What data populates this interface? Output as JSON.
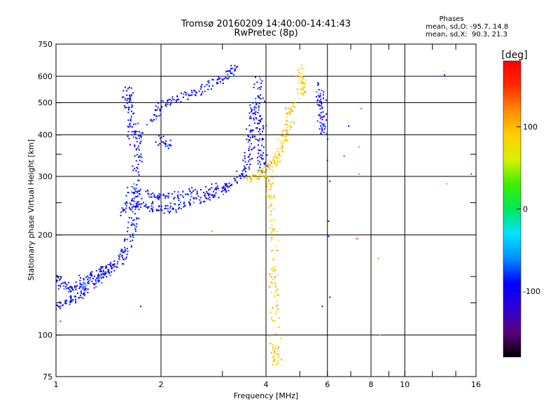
{
  "chart_data": {
    "type": "scatter",
    "title": "Tromsø 20160209 14:40:00-14:41:43",
    "subtitle": "RwPretec (8p)",
    "xlabel": "Frequency [MHz]",
    "ylabel": "Stationary phase Virtual Height [km]",
    "x_scale": "log",
    "y_scale": "log",
    "xlim": [
      1,
      16
    ],
    "ylim": [
      75,
      750
    ],
    "x_ticks": [
      1,
      2,
      4,
      6,
      8,
      10,
      16
    ],
    "x_ticks_labels": [
      "1",
      "2",
      "4",
      "6",
      "8",
      "10",
      "16"
    ],
    "x_minor_ticks": [
      3,
      5,
      7,
      9,
      12,
      14
    ],
    "y_ticks": [
      75,
      100,
      200,
      300,
      400,
      500,
      600,
      750
    ],
    "y_ticks_labels": [
      "75",
      "100",
      "200",
      "300",
      "400",
      "500",
      "600",
      "750"
    ],
    "y_minor_ticks": [
      125,
      150,
      250,
      350
    ],
    "grid": true,
    "stats_block": {
      "heading": "Phases",
      "line_O": "mean, sd,O: -95.7, 14.8",
      "line_X": "mean, sd,X:  90.3, 21.3"
    },
    "colorbar": {
      "label": "[deg]",
      "range": [
        -180,
        180
      ],
      "ticks": [
        100,
        0,
        -100
      ],
      "ticks_labels": [
        "100",
        "0",
        "-100"
      ],
      "palette": [
        "#000000",
        "#5a007a",
        "#2a00d8",
        "#0000ff",
        "#0090ff",
        "#00e5ff",
        "#00e85a",
        "#3cf000",
        "#d8f000",
        "#ffd000",
        "#ff8c00",
        "#ff2a00",
        "#ff0000"
      ]
    },
    "series": [
      {
        "mode": "O",
        "phase_deg": -95.7,
        "segments": [
          [
            [
              1.0,
              148
            ],
            [
              1.06,
              140
            ],
            [
              1.12,
              138
            ],
            [
              1.2,
              145
            ],
            [
              1.3,
              152
            ],
            [
              1.4,
              158
            ],
            [
              1.5,
              165
            ],
            [
              1.58,
              180
            ],
            [
              1.64,
              205
            ],
            [
              1.68,
              240
            ],
            [
              1.7,
              300
            ],
            [
              1.72,
              360
            ],
            [
              1.74,
              410
            ]
          ],
          [
            [
              1.0,
              120
            ],
            [
              1.08,
              125
            ],
            [
              1.16,
              132
            ],
            [
              1.25,
              140
            ],
            [
              1.35,
              150
            ],
            [
              1.45,
              160
            ]
          ],
          [
            [
              1.55,
              235
            ],
            [
              1.65,
              250
            ],
            [
              1.8,
              245
            ],
            [
              2.0,
              240
            ],
            [
              2.2,
              242
            ],
            [
              2.5,
              250
            ],
            [
              2.8,
              262
            ],
            [
              3.1,
              278
            ],
            [
              3.4,
              300
            ],
            [
              3.55,
              330
            ],
            [
              3.62,
              380
            ],
            [
              3.66,
              440
            ],
            [
              3.68,
              520
            ]
          ],
          [
            [
              1.6,
              270
            ],
            [
              1.8,
              265
            ],
            [
              2.0,
              262
            ],
            [
              2.3,
              266
            ],
            [
              2.6,
              270
            ],
            [
              3.0,
              280
            ]
          ],
          [
            [
              1.6,
              560
            ],
            [
              1.62,
              500
            ],
            [
              1.64,
              440
            ],
            [
              1.66,
              380
            ]
          ],
          [
            [
              1.85,
              430
            ],
            [
              2.0,
              490
            ],
            [
              2.2,
              510
            ],
            [
              2.5,
              540
            ],
            [
              2.8,
              570
            ],
            [
              3.1,
              600
            ],
            [
              3.3,
              640
            ]
          ],
          [
            [
              2.0,
              390
            ],
            [
              2.1,
              370
            ]
          ],
          [
            [
              3.8,
              590
            ],
            [
              3.82,
              500
            ],
            [
              3.85,
              420
            ],
            [
              3.88,
              350
            ],
            [
              3.92,
              310
            ]
          ],
          [
            [
              5.7,
              560
            ],
            [
              5.75,
              500
            ],
            [
              5.8,
              450
            ],
            [
              5.85,
              400
            ]
          ]
        ]
      },
      {
        "mode": "X",
        "phase_deg": 90.3,
        "segments": [
          [
            [
              3.5,
              295
            ],
            [
              3.8,
              300
            ],
            [
              4.0,
              310
            ],
            [
              4.2,
              330
            ],
            [
              4.4,
              360
            ],
            [
              4.55,
              400
            ],
            [
              4.65,
              450
            ],
            [
              4.75,
              500
            ]
          ],
          [
            [
              4.1,
              300
            ],
            [
              4.15,
              260
            ],
            [
              4.2,
              200
            ],
            [
              4.22,
              150
            ],
            [
              4.24,
              120
            ],
            [
              4.26,
              90
            ],
            [
              4.28,
              80
            ]
          ],
          [
            [
              5.0,
              640
            ],
            [
              5.05,
              580
            ],
            [
              5.1,
              520
            ]
          ]
        ]
      }
    ],
    "scattered_points": [
      {
        "x": 1.03,
        "y": 110,
        "phase": 150
      },
      {
        "x": 1.75,
        "y": 122,
        "phase": -100
      },
      {
        "x": 2.8,
        "y": 205,
        "phase": 120
      },
      {
        "x": 5.8,
        "y": 122,
        "phase": -100
      },
      {
        "x": 6.1,
        "y": 130,
        "phase": -100
      },
      {
        "x": 6.05,
        "y": 220,
        "phase": -100
      },
      {
        "x": 6.05,
        "y": 198,
        "phase": -100
      },
      {
        "x": 6.0,
        "y": 335,
        "phase": -100
      },
      {
        "x": 6.1,
        "y": 290,
        "phase": -100
      },
      {
        "x": 6.7,
        "y": 345,
        "phase": 150
      },
      {
        "x": 6.9,
        "y": 425,
        "phase": -100
      },
      {
        "x": 7.3,
        "y": 195,
        "phase": 160
      },
      {
        "x": 7.5,
        "y": 480,
        "phase": 130
      },
      {
        "x": 7.4,
        "y": 368,
        "phase": 120
      },
      {
        "x": 7.4,
        "y": 305,
        "phase": 120
      },
      {
        "x": 8.4,
        "y": 170,
        "phase": 120
      },
      {
        "x": 8.5,
        "y": 100,
        "phase": 110
      },
      {
        "x": 13.0,
        "y": 620,
        "phase": 60
      },
      {
        "x": 13.0,
        "y": 605,
        "phase": -100
      },
      {
        "x": 13.2,
        "y": 285,
        "phase": 120
      },
      {
        "x": 15.5,
        "y": 305,
        "phase": 170
      }
    ]
  }
}
